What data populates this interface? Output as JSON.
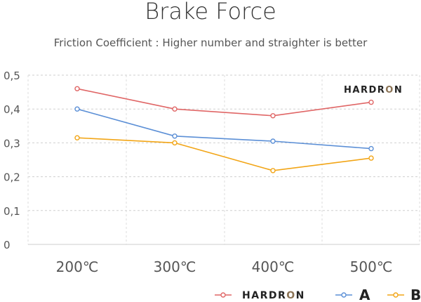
{
  "chart_data": {
    "type": "line",
    "title": "Brake Force",
    "subtitle": "Friction Coefficient : Higher number and straighter is better",
    "xlabel": "",
    "ylabel": "",
    "categories": [
      "200℃",
      "300℃",
      "400℃",
      "500℃"
    ],
    "y_ticks": [
      "0",
      "0,1",
      "0,2",
      "0,3",
      "0,4",
      "0,5"
    ],
    "ylim": [
      0,
      0.5
    ],
    "grid": true,
    "legend_position": "bottom-right",
    "series": [
      {
        "name": "HARDRON",
        "color": "#e06666",
        "values": [
          0.46,
          0.4,
          0.38,
          0.42
        ]
      },
      {
        "name": "A",
        "color": "#5b8fd6",
        "values": [
          0.4,
          0.32,
          0.305,
          0.283
        ]
      },
      {
        "name": "B",
        "color": "#f2a516",
        "values": [
          0.315,
          0.3,
          0.218,
          0.255
        ]
      }
    ],
    "logo": {
      "text": "HARDRON",
      "color": "#8b7355"
    }
  }
}
